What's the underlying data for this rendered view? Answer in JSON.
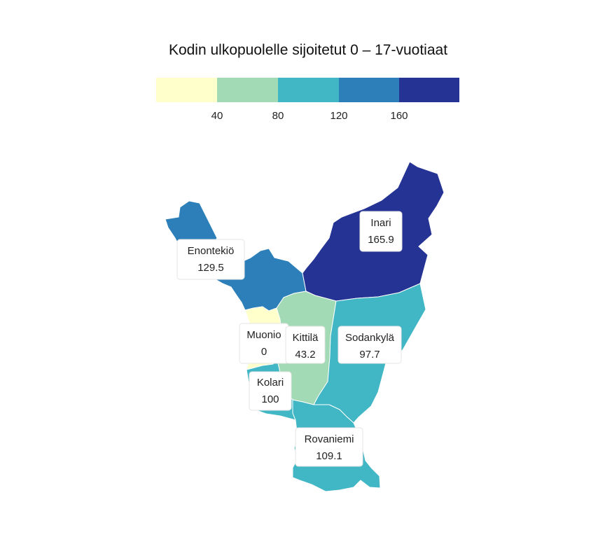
{
  "title": "Kodin ulkopuolelle sijoitetut 0 – 17-vuotiaat",
  "legend": {
    "colors": [
      "#ffffcc",
      "#a1dab4",
      "#41b6c4",
      "#2c7fb8",
      "#253494"
    ],
    "breaks": [
      0,
      40,
      80,
      120,
      160,
      200
    ],
    "tick_labels": [
      "40",
      "80",
      "120",
      "160"
    ]
  },
  "regions": [
    {
      "id": "inari",
      "name": "Inari",
      "value": 165.9,
      "value_label": "165.9",
      "color": "#253494"
    },
    {
      "id": "enontekio",
      "name": "Enontekiö",
      "value": 129.5,
      "value_label": "129.5",
      "color": "#2c7fb8"
    },
    {
      "id": "sodankyla",
      "name": "Sodankylä",
      "value": 97.7,
      "value_label": "97.7",
      "color": "#41b6c4"
    },
    {
      "id": "rovaniemi",
      "name": "Rovaniemi",
      "value": 109.1,
      "value_label": "109.1",
      "color": "#41b6c4"
    },
    {
      "id": "kolari",
      "name": "Kolari",
      "value": 100,
      "value_label": "100",
      "color": "#41b6c4"
    },
    {
      "id": "kittila",
      "name": "Kittilä",
      "value": 43.2,
      "value_label": "43.2",
      "color": "#a1dab4"
    },
    {
      "id": "muonio",
      "name": "Muonio",
      "value": 0,
      "value_label": "0",
      "color": "#ffffcc"
    }
  ]
}
